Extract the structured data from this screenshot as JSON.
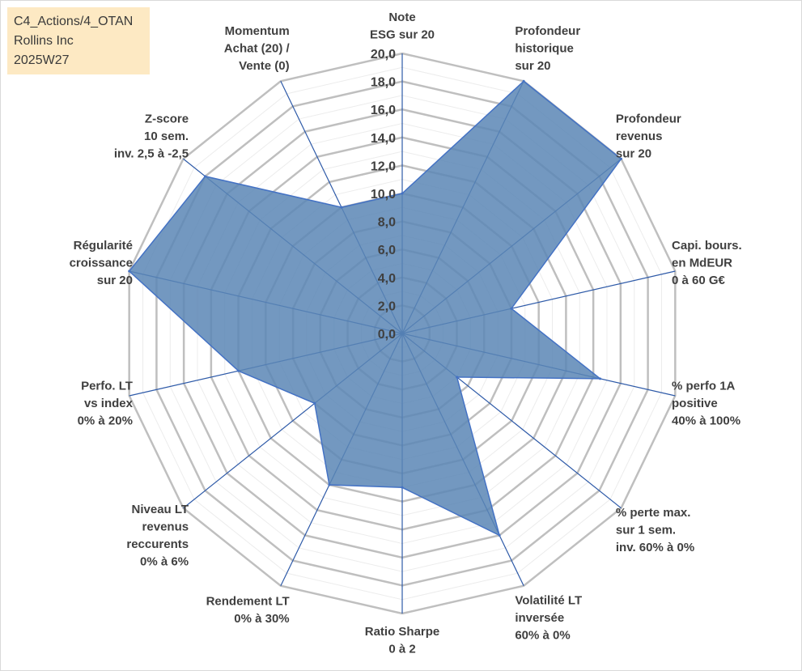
{
  "info_box": {
    "line1": "C4_Actions/4_OTAN",
    "line2": "Rollins Inc",
    "line3": "2025W27"
  },
  "chart_data": {
    "type": "radar",
    "axes": [
      [
        "Note",
        "ESG sur 20"
      ],
      [
        "Profondeur",
        "historique",
        "sur 20"
      ],
      [
        "Profondeur",
        "revenus",
        "sur 20"
      ],
      [
        "Capi. bours.",
        "en MdEUR",
        "0 à 60 G€"
      ],
      [
        "% perfo 1A",
        "positive",
        "40% à 100%"
      ],
      [
        "% perte max.",
        "sur 1 sem.",
        "inv. 60% à 0%"
      ],
      [
        "Volatilité LT",
        "inversée",
        "60% à 0%"
      ],
      [
        "Ratio Sharpe",
        "0 à 2"
      ],
      [
        "Rendement LT",
        "0% à 30%"
      ],
      [
        "Niveau LT",
        "revenus",
        "reccurents",
        "0% à 6%"
      ],
      [
        "Perfo. LT",
        "vs index",
        "0% à 20%"
      ],
      [
        "Régularité",
        "croissance",
        "sur 20"
      ],
      [
        "Z-score",
        "10 sem.",
        "inv. 2,5 à -2,5"
      ],
      [
        "Momentum",
        "Achat (20) /",
        "Vente (0)"
      ]
    ],
    "ticks": [
      "0,0",
      "2,0",
      "4,0",
      "6,0",
      "8,0",
      "10,0",
      "12,0",
      "14,0",
      "16,0",
      "18,0",
      "20,0"
    ],
    "rmin": 0,
    "rmax": 20,
    "series": [
      {
        "values": [
          10.0,
          20.0,
          20.0,
          8.0,
          14.5,
          5.0,
          16.0,
          11.0,
          12.0,
          8.0,
          12.0,
          20.0,
          18.0,
          10.0
        ]
      }
    ],
    "fill_color": "#5b86b5",
    "line_color": "#4472c4",
    "grid_color": "#bfbfbf",
    "axis_color": "#2e5aa8",
    "grid": true,
    "legend": "none"
  }
}
